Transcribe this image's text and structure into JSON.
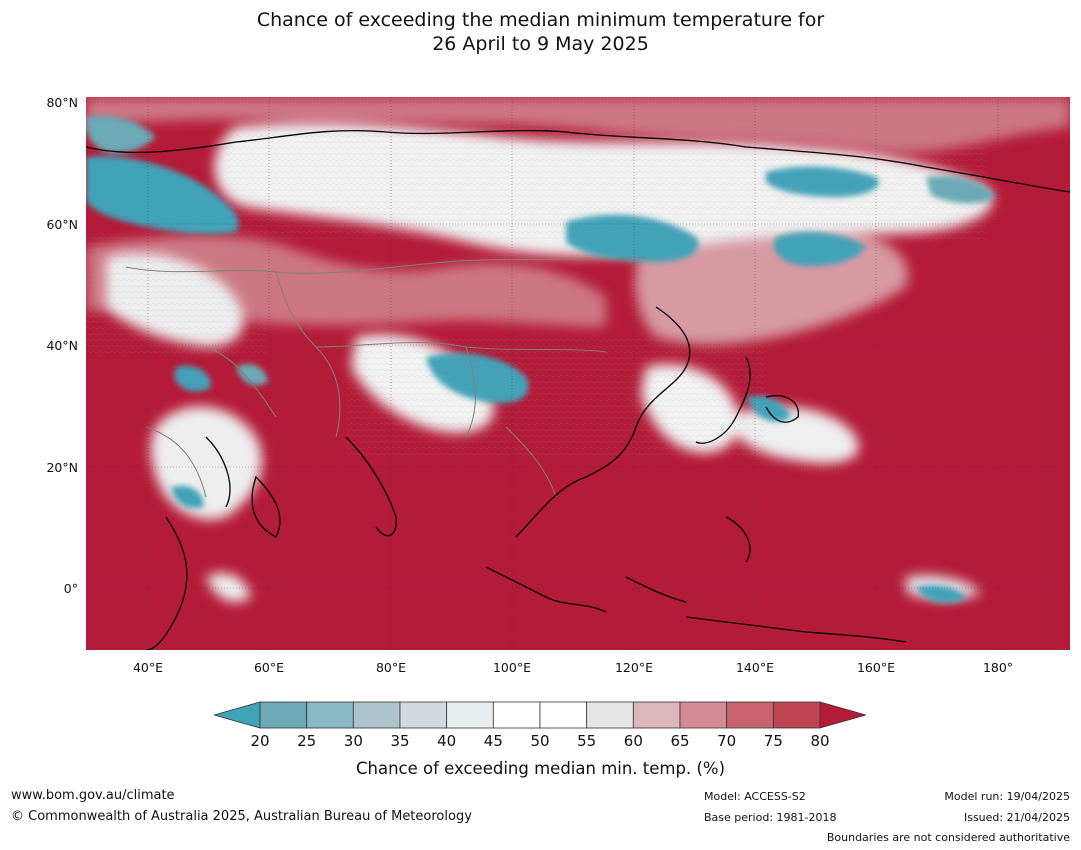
{
  "title_line1": "Chance of exceeding the median minimum temperature for",
  "title_line2": "26 April to 9 May 2025",
  "map": {
    "lat_labels": [
      "80°N",
      "60°N",
      "40°N",
      "20°N",
      "0°"
    ],
    "lon_labels": [
      "40°E",
      "60°E",
      "80°E",
      "100°E",
      "120°E",
      "140°E",
      "160°E",
      "180°"
    ],
    "colors": {
      "ocean_warm": "#b41b38",
      "cool_strong": "#42a2b8",
      "cool_light": "#b5cbd0",
      "neutral": "#f3f3f3",
      "warm_light": "#d8a0a8",
      "warm_mid": "#c4535f",
      "coast": "#000000",
      "border": "#808080",
      "grid": "#333333"
    }
  },
  "colorbar": {
    "ticks": [
      "20",
      "25",
      "30",
      "35",
      "40",
      "45",
      "50",
      "55",
      "60",
      "65",
      "70",
      "75",
      "80"
    ],
    "colors": [
      "#42a2b8",
      "#6aa9b5",
      "#8ab8c4",
      "#adc5ca",
      "#d2dadd",
      "#e9eff1",
      "#ffffff",
      "#ffffff",
      "#e6e6e6",
      "#ddb6bc",
      "#d38b96",
      "#c8636f",
      "#bf4552",
      "#b41b38"
    ],
    "label": "Chance of exceeding median min. temp. (%)"
  },
  "footer": {
    "website": "www.bom.gov.au/climate",
    "copyright": "© Commonwealth of Australia 2025, Australian Bureau of Meteorology",
    "model": "Model: ACCESS-S2",
    "base_period": "Base period: 1981-2018",
    "model_run": "Model run: 19/04/2025",
    "issued": "Issued: 21/04/2025",
    "disclaimer": "Boundaries are not considered authoritative"
  }
}
